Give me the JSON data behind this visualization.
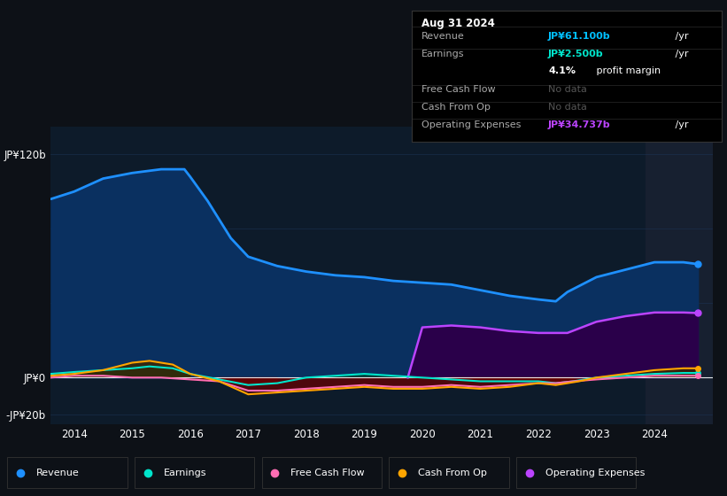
{
  "bg_color": "#0d1117",
  "plot_bg_color": "#0d1b2a",
  "grid_color": "#1e3a5f",
  "title": "Aug 31 2024",
  "info_rows": [
    {
      "label": "Revenue",
      "value": "JP¥61.100b",
      "unit": " /yr",
      "value_color": "#00bfff",
      "sub": null,
      "sub_bold": null
    },
    {
      "label": "Earnings",
      "value": "JP¥2.500b",
      "unit": " /yr",
      "value_color": "#00e5cc",
      "sub": "profit margin",
      "sub_bold": "4.1%"
    },
    {
      "label": "Free Cash Flow",
      "value": "No data",
      "unit": "",
      "value_color": "#555555",
      "sub": null,
      "sub_bold": null
    },
    {
      "label": "Cash From Op",
      "value": "No data",
      "unit": "",
      "value_color": "#555555",
      "sub": null,
      "sub_bold": null
    },
    {
      "label": "Operating Expenses",
      "value": "JP¥34.737b",
      "unit": " /yr",
      "value_color": "#bb44ff",
      "sub": null,
      "sub_bold": null
    }
  ],
  "revenue": {
    "x": [
      2013.6,
      2014.0,
      2014.5,
      2015.0,
      2015.5,
      2015.9,
      2016.0,
      2016.3,
      2016.7,
      2017.0,
      2017.5,
      2018.0,
      2018.5,
      2019.0,
      2019.5,
      2020.0,
      2020.5,
      2021.0,
      2021.5,
      2022.0,
      2022.3,
      2022.5,
      2023.0,
      2023.5,
      2024.0,
      2024.5,
      2024.75
    ],
    "y": [
      96,
      100,
      107,
      110,
      112,
      112,
      108,
      95,
      75,
      65,
      60,
      57,
      55,
      54,
      52,
      51,
      50,
      47,
      44,
      42,
      41,
      46,
      54,
      58,
      62,
      62,
      61
    ],
    "color": "#1e90ff",
    "fill_color": "#0a3060",
    "line_width": 2.0
  },
  "earnings": {
    "x": [
      2013.6,
      2014.0,
      2014.5,
      2015.0,
      2015.3,
      2015.7,
      2016.0,
      2016.5,
      2017.0,
      2017.5,
      2018.0,
      2018.5,
      2019.0,
      2019.5,
      2020.0,
      2020.5,
      2021.0,
      2021.5,
      2022.0,
      2022.3,
      2022.6,
      2023.0,
      2023.5,
      2024.0,
      2024.5,
      2024.75
    ],
    "y": [
      2,
      3,
      4,
      5,
      6,
      5,
      2,
      -1,
      -4,
      -3,
      0,
      1,
      2,
      1,
      0,
      -1,
      -2,
      -2,
      -2,
      -3,
      -2,
      0,
      1,
      2,
      2.5,
      2.5
    ],
    "color": "#00e5cc",
    "line_width": 1.5
  },
  "free_cash_flow": {
    "x": [
      2013.6,
      2014.0,
      2014.5,
      2015.0,
      2015.5,
      2016.0,
      2016.5,
      2017.0,
      2017.5,
      2018.0,
      2018.5,
      2019.0,
      2019.5,
      2020.0,
      2020.5,
      2021.0,
      2021.5,
      2022.0,
      2022.3,
      2022.6,
      2023.0,
      2023.5,
      2024.0,
      2024.5,
      2024.75
    ],
    "y": [
      0,
      1,
      1,
      0,
      0,
      -1,
      -2,
      -7,
      -7,
      -6,
      -5,
      -4,
      -5,
      -5,
      -4,
      -5,
      -4,
      -3,
      -3,
      -2,
      -1,
      0,
      1,
      1,
      1
    ],
    "color": "#ff6eb4",
    "line_width": 1.5
  },
  "cash_from_op": {
    "x": [
      2013.6,
      2014.0,
      2014.5,
      2015.0,
      2015.3,
      2015.7,
      2016.0,
      2016.5,
      2017.0,
      2017.5,
      2018.0,
      2018.5,
      2019.0,
      2019.5,
      2020.0,
      2020.5,
      2021.0,
      2021.5,
      2022.0,
      2022.3,
      2022.7,
      2023.0,
      2023.5,
      2024.0,
      2024.5,
      2024.75
    ],
    "y": [
      1,
      2,
      4,
      8,
      9,
      7,
      2,
      -2,
      -9,
      -8,
      -7,
      -6,
      -5,
      -6,
      -6,
      -5,
      -6,
      -5,
      -3,
      -4,
      -2,
      0,
      2,
      4,
      5,
      5
    ],
    "color": "#ffa500",
    "line_width": 1.5
  },
  "op_expenses": {
    "x": [
      2019.75,
      2020.0,
      2020.5,
      2021.0,
      2021.5,
      2022.0,
      2022.5,
      2023.0,
      2023.5,
      2024.0,
      2024.5,
      2024.75
    ],
    "y": [
      0,
      27,
      28,
      27,
      25,
      24,
      24,
      30,
      33,
      35,
      35,
      34.7
    ],
    "color": "#bb44ff",
    "fill_color": "#2a004a",
    "line_width": 1.8
  },
  "negative_fill_color": "#6b0000",
  "earnings_pos_fill": "#003d35",
  "cashop_pos_fill": "#3d2800",
  "highlight_start": 2023.85,
  "highlight_end": 2025.0,
  "xlim_left": 2013.6,
  "xlim_right": 2025.0,
  "ylim_bottom": -25,
  "ylim_top": 135,
  "xticks": [
    2014,
    2015,
    2016,
    2017,
    2018,
    2019,
    2020,
    2021,
    2022,
    2023,
    2024
  ],
  "legend": [
    {
      "label": "Revenue",
      "color": "#1e90ff"
    },
    {
      "label": "Earnings",
      "color": "#00e5cc"
    },
    {
      "label": "Free Cash Flow",
      "color": "#ff6eb4"
    },
    {
      "label": "Cash From Op",
      "color": "#ffa500"
    },
    {
      "label": "Operating Expenses",
      "color": "#bb44ff"
    }
  ]
}
